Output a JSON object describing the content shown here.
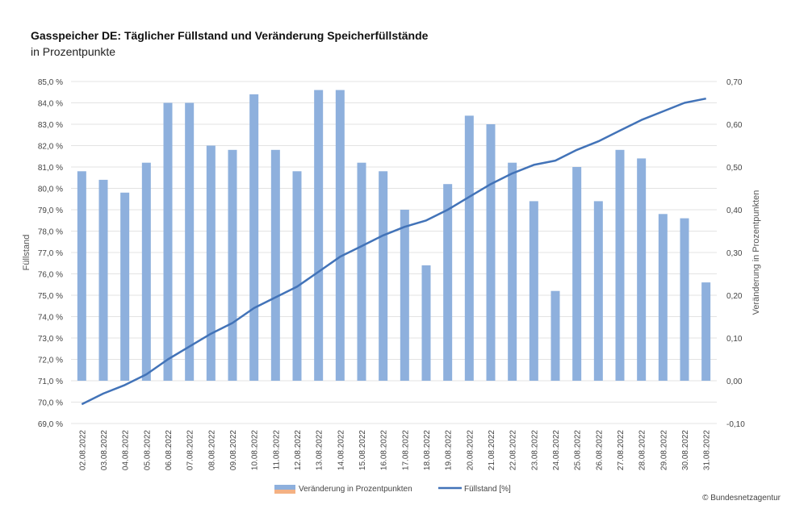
{
  "title": "Gasspeicher DE: Täglicher Füllstand und Veränderung Speicherfüllstände",
  "subtitle": "in Prozentpunkte",
  "credit": "© Bundesnetzagentur",
  "chart_data": {
    "type": "bar+line",
    "title": "Gasspeicher DE: Täglicher Füllstand und Veränderung Speicherfüllstände",
    "subtitle": "in Prozentpunkte",
    "categories": [
      "02.08.2022",
      "03.08.2022",
      "04.08.2022",
      "05.08.2022",
      "06.08.2022",
      "07.08.2022",
      "08.08.2022",
      "09.08.2022",
      "10.08.2022",
      "11.08.2022",
      "12.08.2022",
      "13.08.2022",
      "14.08.2022",
      "15.08.2022",
      "16.08.2022",
      "17.08.2022",
      "18.08.2022",
      "19.08.2022",
      "20.08.2022",
      "21.08.2022",
      "22.08.2022",
      "23.08.2022",
      "24.08.2022",
      "25.08.2022",
      "26.08.2022",
      "27.08.2022",
      "28.08.2022",
      "29.08.2022",
      "30.08.2022",
      "31.08.2022"
    ],
    "series": [
      {
        "name": "Veränderung in Prozentpunkten",
        "type": "bar",
        "axis": "right",
        "color": "#8eb0dd",
        "values": [
          0.49,
          0.47,
          0.44,
          0.51,
          0.65,
          0.65,
          0.55,
          0.54,
          0.67,
          0.54,
          0.49,
          0.68,
          0.68,
          0.51,
          0.49,
          0.4,
          0.27,
          0.46,
          0.62,
          0.6,
          0.51,
          0.42,
          0.21,
          0.5,
          0.42,
          0.54,
          0.52,
          0.39,
          0.38,
          0.23
        ]
      },
      {
        "name": "Füllstand [%]",
        "type": "line",
        "axis": "left",
        "color": "#4273b8",
        "values": [
          69.9,
          70.4,
          70.8,
          71.3,
          72.0,
          72.6,
          73.2,
          73.7,
          74.4,
          74.9,
          75.4,
          76.1,
          76.8,
          77.3,
          77.8,
          78.2,
          78.5,
          79.0,
          79.6,
          80.2,
          80.7,
          81.1,
          81.3,
          81.8,
          82.2,
          82.7,
          83.2,
          83.6,
          84.0,
          84.2
        ]
      }
    ],
    "y_left": {
      "label": "Füllstand",
      "min": 69.0,
      "max": 85.0,
      "step": 1.0,
      "ticks": [
        "69,0 %",
        "70,0 %",
        "71,0 %",
        "72,0 %",
        "73,0 %",
        "74,0 %",
        "75,0 %",
        "76,0 %",
        "77,0 %",
        "78,0 %",
        "79,0 %",
        "80,0 %",
        "81,0 %",
        "82,0 %",
        "83,0 %",
        "84,0 %",
        "85,0 %"
      ]
    },
    "y_right": {
      "label": "Veränderung in Prozentpunkten",
      "min": -0.1,
      "max": 0.7,
      "step": 0.1,
      "ticks": [
        "-0,10",
        "0,00",
        "0,10",
        "0,20",
        "0,30",
        "0,40",
        "0,50",
        "0,60",
        "0,70"
      ]
    },
    "grid": true,
    "legend": {
      "placement": "bottom",
      "items": [
        {
          "label": "Veränderung in Prozentpunkten",
          "color": "#8eb0dd",
          "accent": "#f4b183",
          "kind": "bar"
        },
        {
          "label": "Füllstand [%]",
          "color": "#4273b8",
          "kind": "line"
        }
      ]
    }
  }
}
